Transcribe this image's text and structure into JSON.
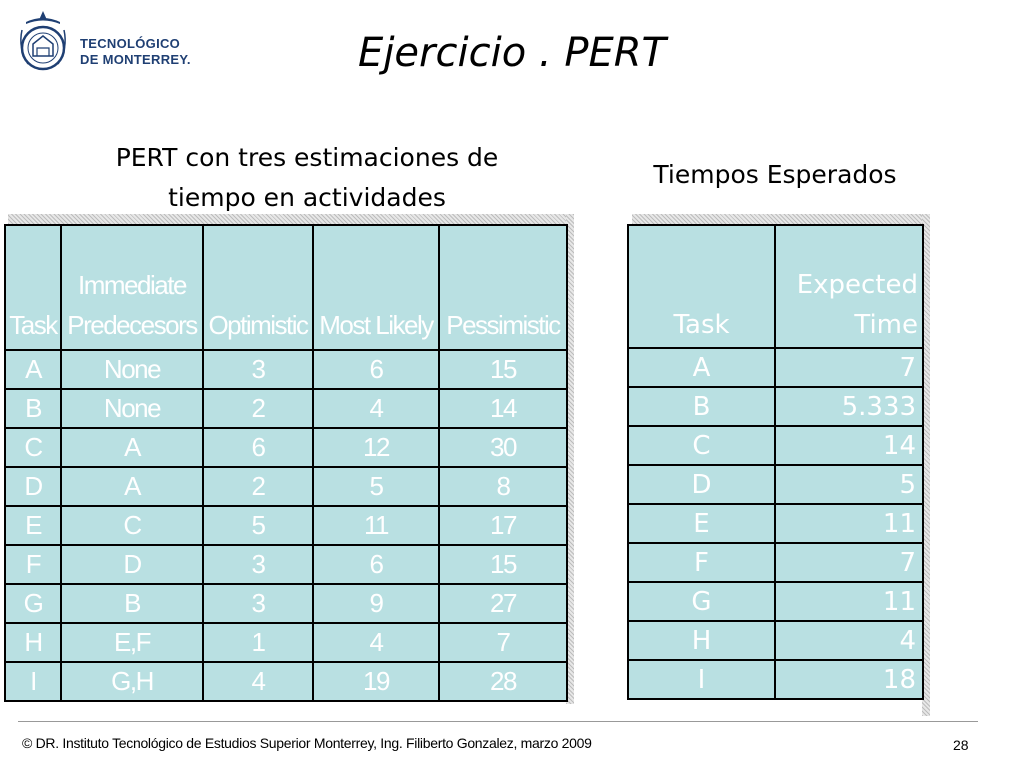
{
  "logo": {
    "line1": "TECNOLÓGICO",
    "line2": "DE MONTERREY."
  },
  "title": "Ejercicio . PERT",
  "subtitle_left": {
    "line1": "PERT con tres estimaciones de",
    "line2": "tiempo en actividades"
  },
  "subtitle_right": "Tiempos Esperados",
  "table1": {
    "headers": {
      "task": "Task",
      "pred1": "Immediate",
      "pred2": "Predecesors",
      "opt": "Optimistic",
      "ml": "Most Likely",
      "pes": "Pessimistic"
    },
    "rows": [
      {
        "task": "A",
        "pred": "None",
        "opt": "3",
        "ml": "6",
        "pes": "15"
      },
      {
        "task": "B",
        "pred": "None",
        "opt": "2",
        "ml": "4",
        "pes": "14"
      },
      {
        "task": "C",
        "pred": "A",
        "opt": "6",
        "ml": "12",
        "pes": "30"
      },
      {
        "task": "D",
        "pred": "A",
        "opt": "2",
        "ml": "5",
        "pes": "8"
      },
      {
        "task": "E",
        "pred": "C",
        "opt": "5",
        "ml": "11",
        "pes": "17"
      },
      {
        "task": "F",
        "pred": "D",
        "opt": "3",
        "ml": "6",
        "pes": "15"
      },
      {
        "task": "G",
        "pred": "B",
        "opt": "3",
        "ml": "9",
        "pes": "27"
      },
      {
        "task": "H",
        "pred": "E,F",
        "opt": "1",
        "ml": "4",
        "pes": "7"
      },
      {
        "task": "I",
        "pred": "G,H",
        "opt": "4",
        "ml": "19",
        "pes": "28"
      }
    ]
  },
  "table2": {
    "headers": {
      "task": "Task",
      "exp1": "Expected",
      "exp2": "Time"
    },
    "rows": [
      {
        "task": "A",
        "time": "7"
      },
      {
        "task": "B",
        "time": "5.333"
      },
      {
        "task": "C",
        "time": "14"
      },
      {
        "task": "D",
        "time": "5"
      },
      {
        "task": "E",
        "time": "11"
      },
      {
        "task": "F",
        "time": "7"
      },
      {
        "task": "G",
        "time": "11"
      },
      {
        "task": "H",
        "time": "4"
      },
      {
        "task": "I",
        "time": "18"
      }
    ]
  },
  "footer": "© DR. Instituto Tecnológico de Estudios Superior  Monterrey, Ing. Filiberto Gonzalez,  marzo 2009",
  "page_number": "28",
  "colors": {
    "table_fill": "#b9e0e2",
    "table_text": "#ffffff",
    "logo_blue": "#1f3f73"
  }
}
